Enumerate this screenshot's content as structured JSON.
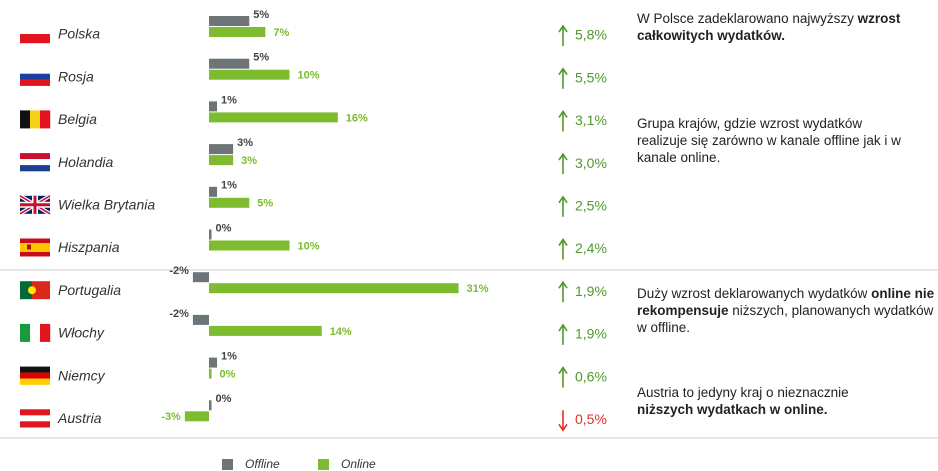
{
  "chart_data": {
    "type": "bar",
    "categories": [
      "Polska",
      "Rosja",
      "Belgia",
      "Holandia",
      "Wielka Brytania",
      "Hiszpania",
      "Portugalia",
      "Włochy",
      "Niemcy",
      "Austria"
    ],
    "series": [
      {
        "name": "Offline",
        "color": "#6e7579",
        "values": [
          5,
          5,
          1,
          3,
          1,
          0,
          -2,
          -2,
          1,
          0
        ],
        "value_labels": [
          "5%",
          "5%",
          "1%",
          "3%",
          "1%",
          "0%",
          "-2%",
          "-2%",
          "1%",
          "0%"
        ]
      },
      {
        "name": "Online",
        "color": "#7cbc2e",
        "values": [
          7,
          10,
          16,
          3,
          5,
          10,
          31,
          14,
          0,
          -3
        ],
        "value_labels": [
          "7%",
          "10%",
          "16%",
          "3%",
          "5%",
          "10%",
          "31%",
          "14%",
          "0%",
          "-3%"
        ]
      }
    ],
    "totals": {
      "values": [
        5.8,
        5.5,
        3.1,
        3.0,
        2.5,
        2.4,
        1.9,
        1.9,
        0.6,
        0.5
      ],
      "value_labels": [
        "5,8%",
        "5,5%",
        "3,1%",
        "3,0%",
        "2,5%",
        "2,4%",
        "1,9%",
        "1,9%",
        "0,6%",
        "0,5%"
      ],
      "directions": [
        "up",
        "up",
        "up",
        "up",
        "up",
        "up",
        "up",
        "up",
        "up",
        "down"
      ],
      "up_color": "#4e9a2a",
      "down_color": "#e0301e"
    },
    "annotations": [
      [
        {
          "text": "W Polsce zadeklarowano najwyższy ",
          "bold": false
        },
        {
          "text": "wzrost całkowitych wydatków.",
          "bold": true
        }
      ],
      [
        {
          "text": "Grupa krajów, gdzie wzrost wydatków realizuje się zarówno w kanale offline jak i w kanale online.",
          "bold": false
        }
      ],
      [
        {
          "text": "Duży wzrost deklarowanych wydatków ",
          "bold": false
        },
        {
          "text": "online nie rekompensuje",
          "bold": true
        },
        {
          "text": " niższych, planowanych wydatków w offline.",
          "bold": false
        }
      ],
      [
        {
          "text": "Austria to jedyny kraj o nieznacznie ",
          "bold": false
        },
        {
          "text": "niższych wydatkach w online.",
          "bold": true
        }
      ]
    ]
  }
}
